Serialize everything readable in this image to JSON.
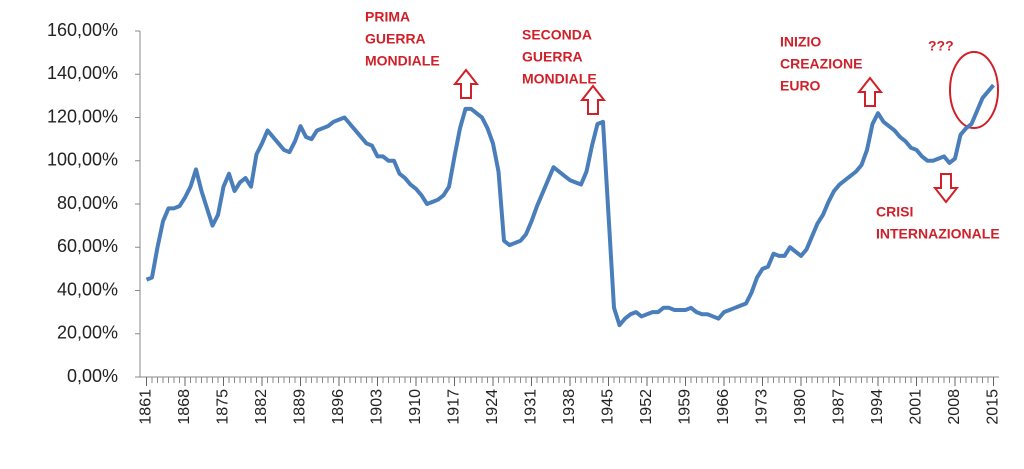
{
  "chart_data": {
    "type": "line",
    "x": [
      1861,
      1862,
      1863,
      1864,
      1865,
      1866,
      1867,
      1868,
      1869,
      1870,
      1871,
      1872,
      1873,
      1874,
      1875,
      1876,
      1877,
      1878,
      1879,
      1880,
      1881,
      1882,
      1883,
      1884,
      1885,
      1886,
      1887,
      1888,
      1889,
      1890,
      1891,
      1892,
      1893,
      1894,
      1895,
      1896,
      1897,
      1898,
      1899,
      1900,
      1901,
      1902,
      1903,
      1904,
      1905,
      1906,
      1907,
      1908,
      1909,
      1910,
      1911,
      1912,
      1913,
      1914,
      1915,
      1916,
      1917,
      1918,
      1919,
      1920,
      1921,
      1922,
      1923,
      1924,
      1925,
      1926,
      1927,
      1928,
      1929,
      1930,
      1931,
      1932,
      1933,
      1934,
      1935,
      1936,
      1937,
      1938,
      1939,
      1940,
      1941,
      1942,
      1943,
      1944,
      1945,
      1946,
      1947,
      1948,
      1949,
      1950,
      1951,
      1952,
      1953,
      1954,
      1955,
      1956,
      1957,
      1958,
      1959,
      1960,
      1961,
      1962,
      1963,
      1964,
      1965,
      1966,
      1967,
      1968,
      1969,
      1970,
      1971,
      1972,
      1973,
      1974,
      1975,
      1976,
      1977,
      1978,
      1979,
      1980,
      1981,
      1982,
      1983,
      1984,
      1985,
      1986,
      1987,
      1988,
      1989,
      1990,
      1991,
      1992,
      1993,
      1994,
      1995,
      1996,
      1997,
      1998,
      1999,
      2000,
      2001,
      2002,
      2003,
      2004,
      2005,
      2006,
      2007,
      2008,
      2009,
      2010,
      2011,
      2012,
      2013,
      2014,
      2015
    ],
    "series": [
      {
        "color": "#4a7ebb",
        "values": [
          45,
          46,
          60,
          72,
          78,
          78,
          79,
          83,
          88,
          96,
          86,
          78,
          70,
          75,
          88,
          94,
          86,
          90,
          92,
          88,
          103,
          108,
          114,
          111,
          108,
          105,
          104,
          109,
          116,
          111,
          110,
          114,
          115,
          116,
          118,
          119,
          120,
          117,
          114,
          111,
          108,
          107,
          102,
          102,
          100,
          100,
          94,
          92,
          89,
          87,
          84,
          80,
          81,
          82,
          84,
          88,
          102,
          115,
          124,
          124,
          122,
          120,
          115,
          108,
          95,
          63,
          61,
          62,
          63,
          66,
          72,
          79,
          85,
          91,
          97,
          95,
          93,
          91,
          90,
          89,
          95,
          107,
          117,
          118,
          75,
          32,
          24,
          27,
          29,
          30,
          28,
          29,
          30,
          30,
          32,
          32,
          31,
          31,
          31,
          32,
          30,
          29,
          29,
          28,
          27,
          30,
          31,
          32,
          33,
          34,
          39,
          46,
          50,
          51,
          57,
          56,
          56,
          60,
          58,
          56,
          59,
          65,
          71,
          75,
          81,
          86,
          89,
          91,
          93,
          95,
          98,
          105,
          117,
          122,
          118,
          116,
          114,
          111,
          109,
          106,
          105,
          102,
          100,
          100,
          101,
          102,
          99,
          101,
          112,
          115,
          117,
          123,
          129,
          132,
          135
        ]
      }
    ],
    "xlim": [
      1860,
      2016
    ],
    "xticks": [
      1861,
      1868,
      1875,
      1882,
      1889,
      1896,
      1903,
      1910,
      1917,
      1924,
      1931,
      1938,
      1945,
      1952,
      1959,
      1966,
      1973,
      1980,
      1987,
      1994,
      2001,
      2008,
      2015
    ],
    "ylim": [
      0,
      160
    ],
    "yticks": [
      {
        "value": 0,
        "label": "0,00%"
      },
      {
        "value": 20,
        "label": "20,00%"
      },
      {
        "value": 40,
        "label": "40,00%"
      },
      {
        "value": 60,
        "label": "60,00%"
      },
      {
        "value": 80,
        "label": "80,00%"
      },
      {
        "value": 100,
        "label": "100,00%"
      },
      {
        "value": 120,
        "label": "120,00%"
      },
      {
        "value": 140,
        "label": "140,00%"
      },
      {
        "value": 160,
        "label": "160,00%"
      }
    ],
    "grid": false,
    "annotations": [
      [
        "PRIMA",
        "GUERRA",
        "MONDIALE"
      ],
      [
        "SECONDA",
        "GUERRA",
        "MONDIALE"
      ],
      [
        "INIZIO",
        "CREAZIONE",
        "EURO"
      ],
      [
        "???"
      ],
      [
        "CRISI",
        "INTERNAZIONALE"
      ]
    ]
  }
}
